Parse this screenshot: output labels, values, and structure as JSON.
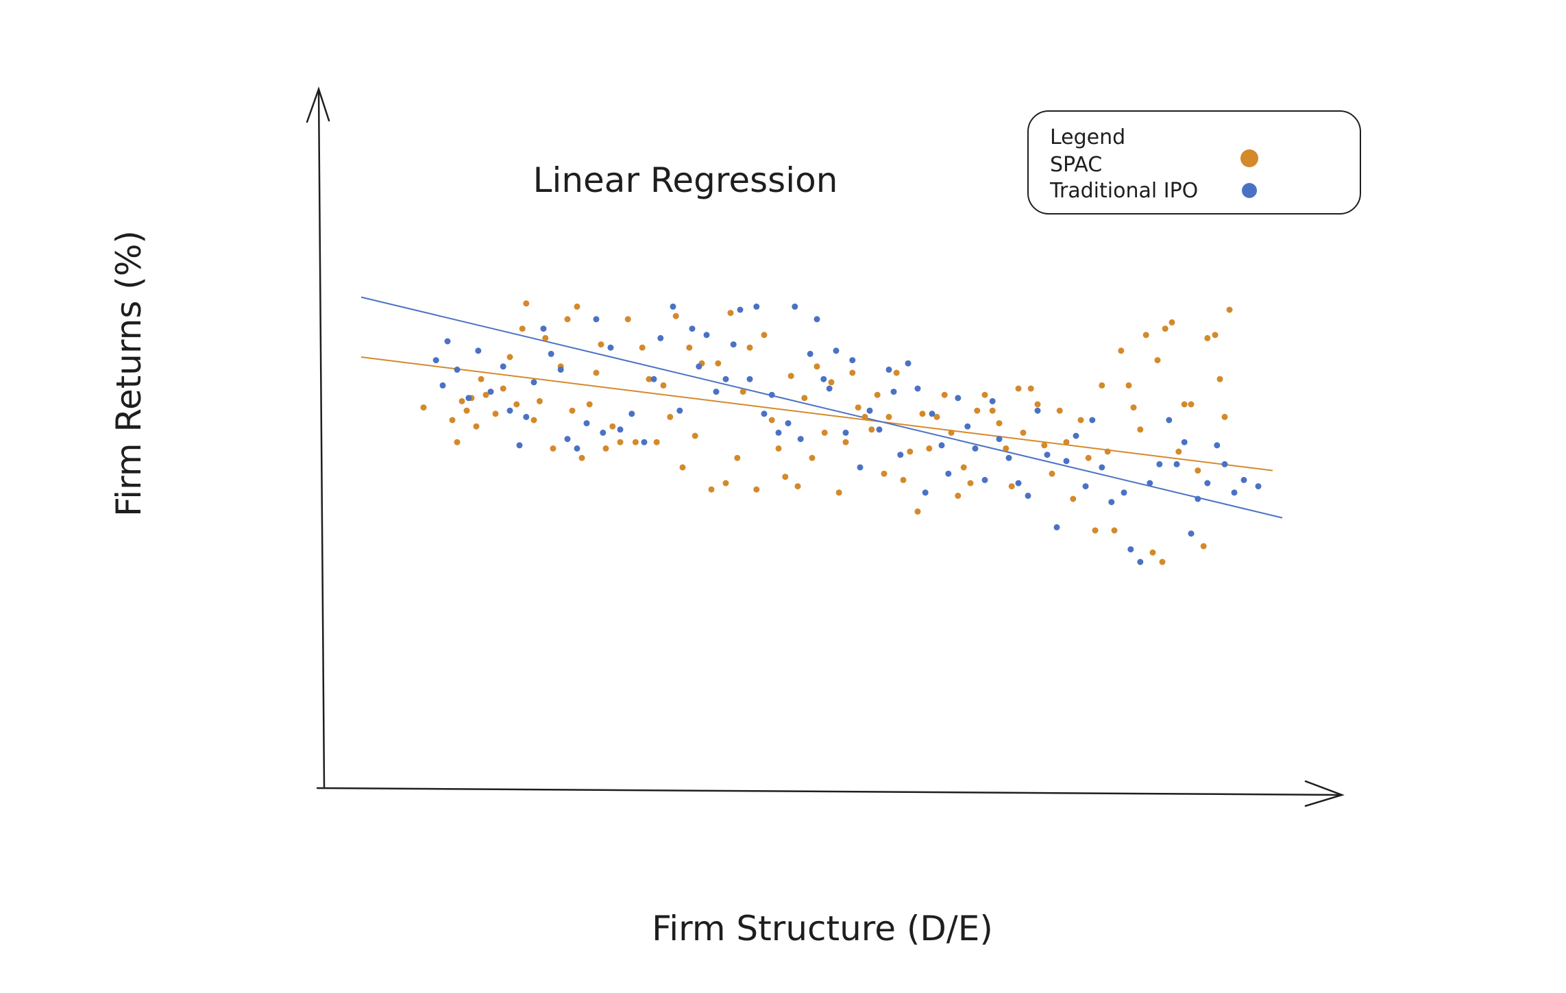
{
  "chart_data": {
    "type": "scatter",
    "title": "Linear Regression",
    "xlabel": "Firm Structure (D/E)",
    "ylabel": "Firm Returns (%)",
    "grid": false,
    "legend": {
      "title": "Legend",
      "placement": "top-right"
    },
    "series": [
      {
        "name": "SPAC",
        "color": "#D4892A",
        "points": [
          [
            0.65,
            0.49
          ],
          [
            0.95,
            0.45
          ],
          [
            1.0,
            0.38
          ],
          [
            1.05,
            0.51
          ],
          [
            1.1,
            0.48
          ],
          [
            1.15,
            0.52
          ],
          [
            1.2,
            0.43
          ],
          [
            1.25,
            0.58
          ],
          [
            1.3,
            0.53
          ],
          [
            1.4,
            0.47
          ],
          [
            1.48,
            0.55
          ],
          [
            1.55,
            0.65
          ],
          [
            1.62,
            0.5
          ],
          [
            1.68,
            0.74
          ],
          [
            1.72,
            0.82
          ],
          [
            1.8,
            0.45
          ],
          [
            1.86,
            0.51
          ],
          [
            1.92,
            0.71
          ],
          [
            2.0,
            0.36
          ],
          [
            2.08,
            0.62
          ],
          [
            2.15,
            0.77
          ],
          [
            2.2,
            0.48
          ],
          [
            2.25,
            0.81
          ],
          [
            2.3,
            0.33
          ],
          [
            2.38,
            0.5
          ],
          [
            2.45,
            0.6
          ],
          [
            2.5,
            0.69
          ],
          [
            2.55,
            0.36
          ],
          [
            2.62,
            0.43
          ],
          [
            2.7,
            0.38
          ],
          [
            2.78,
            0.77
          ],
          [
            2.86,
            0.38
          ],
          [
            2.93,
            0.68
          ],
          [
            3.0,
            0.58
          ],
          [
            3.08,
            0.38
          ],
          [
            3.15,
            0.56
          ],
          [
            3.22,
            0.46
          ],
          [
            3.28,
            0.78
          ],
          [
            3.35,
            0.3
          ],
          [
            3.42,
            0.68
          ],
          [
            3.48,
            0.4
          ],
          [
            3.55,
            0.63
          ],
          [
            3.65,
            0.23
          ],
          [
            3.72,
            0.63
          ],
          [
            3.8,
            0.25
          ],
          [
            3.85,
            0.79
          ],
          [
            3.92,
            0.33
          ],
          [
            3.98,
            0.54
          ],
          [
            4.05,
            0.68
          ],
          [
            4.12,
            0.23
          ],
          [
            4.2,
            0.72
          ],
          [
            4.28,
            0.45
          ],
          [
            4.35,
            0.36
          ],
          [
            4.42,
            0.27
          ],
          [
            4.48,
            0.59
          ],
          [
            4.55,
            0.24
          ],
          [
            4.62,
            0.52
          ],
          [
            4.7,
            0.33
          ],
          [
            4.75,
            0.62
          ],
          [
            4.83,
            0.41
          ],
          [
            4.9,
            0.57
          ],
          [
            4.98,
            0.22
          ],
          [
            5.05,
            0.38
          ],
          [
            5.12,
            0.6
          ],
          [
            5.18,
            0.49
          ],
          [
            5.25,
            0.46
          ],
          [
            5.32,
            0.42
          ],
          [
            5.38,
            0.53
          ],
          [
            5.45,
            0.28
          ],
          [
            5.5,
            0.46
          ],
          [
            5.58,
            0.6
          ],
          [
            5.65,
            0.26
          ],
          [
            5.72,
            0.35
          ],
          [
            5.8,
            0.16
          ],
          [
            5.85,
            0.47
          ],
          [
            5.92,
            0.36
          ],
          [
            6.0,
            0.46
          ],
          [
            6.08,
            0.53
          ],
          [
            6.15,
            0.41
          ],
          [
            6.22,
            0.21
          ],
          [
            6.28,
            0.3
          ],
          [
            6.35,
            0.25
          ],
          [
            6.42,
            0.48
          ],
          [
            6.5,
            0.53
          ],
          [
            6.58,
            0.48
          ],
          [
            6.65,
            0.44
          ],
          [
            6.72,
            0.36
          ],
          [
            6.78,
            0.24
          ],
          [
            6.85,
            0.55
          ],
          [
            6.9,
            0.41
          ],
          [
            6.98,
            0.55
          ],
          [
            7.05,
            0.5
          ],
          [
            7.12,
            0.37
          ],
          [
            7.2,
            0.28
          ],
          [
            7.28,
            0.48
          ],
          [
            7.35,
            0.38
          ],
          [
            7.42,
            0.2
          ],
          [
            7.5,
            0.45
          ],
          [
            7.58,
            0.33
          ],
          [
            7.65,
            0.1
          ],
          [
            7.72,
            0.56
          ],
          [
            7.78,
            0.35
          ],
          [
            7.85,
            0.1
          ],
          [
            7.92,
            0.67
          ],
          [
            8.0,
            0.56
          ],
          [
            8.05,
            0.49
          ],
          [
            8.12,
            0.42
          ],
          [
            8.18,
            0.72
          ],
          [
            8.25,
            0.03
          ],
          [
            8.3,
            0.64
          ],
          [
            8.35,
            0.0
          ],
          [
            8.38,
            0.74
          ],
          [
            8.45,
            0.76
          ],
          [
            8.52,
            0.35
          ],
          [
            8.58,
            0.5
          ],
          [
            8.65,
            0.5
          ],
          [
            8.72,
            0.29
          ],
          [
            8.78,
            0.05
          ],
          [
            8.82,
            0.71
          ],
          [
            8.9,
            0.72
          ],
          [
            8.95,
            0.58
          ],
          [
            9.0,
            0.46
          ],
          [
            9.05,
            0.8
          ]
        ],
        "fit": {
          "x": [
            0.0,
            9.5
          ],
          "y": [
            0.65,
            0.29
          ]
        }
      },
      {
        "name": "Traditional IPO",
        "color": "#4A72C4",
        "points": [
          [
            0.78,
            0.64
          ],
          [
            0.85,
            0.56
          ],
          [
            0.9,
            0.7
          ],
          [
            1.0,
            0.61
          ],
          [
            1.12,
            0.52
          ],
          [
            1.22,
            0.67
          ],
          [
            1.35,
            0.54
          ],
          [
            1.48,
            0.62
          ],
          [
            1.55,
            0.48
          ],
          [
            1.65,
            0.37
          ],
          [
            1.72,
            0.46
          ],
          [
            1.8,
            0.57
          ],
          [
            1.9,
            0.74
          ],
          [
            1.98,
            0.66
          ],
          [
            2.08,
            0.61
          ],
          [
            2.15,
            0.39
          ],
          [
            2.25,
            0.36
          ],
          [
            2.35,
            0.44
          ],
          [
            2.45,
            0.77
          ],
          [
            2.52,
            0.41
          ],
          [
            2.6,
            0.68
          ],
          [
            2.7,
            0.42
          ],
          [
            2.82,
            0.47
          ],
          [
            2.95,
            0.38
          ],
          [
            3.05,
            0.58
          ],
          [
            3.12,
            0.71
          ],
          [
            3.25,
            0.81
          ],
          [
            3.32,
            0.48
          ],
          [
            3.45,
            0.74
          ],
          [
            3.52,
            0.62
          ],
          [
            3.6,
            0.72
          ],
          [
            3.7,
            0.54
          ],
          [
            3.8,
            0.58
          ],
          [
            3.88,
            0.69
          ],
          [
            3.95,
            0.8
          ],
          [
            4.05,
            0.58
          ],
          [
            4.12,
            0.81
          ],
          [
            4.2,
            0.47
          ],
          [
            4.28,
            0.53
          ],
          [
            4.35,
            0.41
          ],
          [
            4.45,
            0.44
          ],
          [
            4.52,
            0.81
          ],
          [
            4.58,
            0.39
          ],
          [
            4.68,
            0.66
          ],
          [
            4.75,
            0.77
          ],
          [
            4.82,
            0.58
          ],
          [
            4.88,
            0.55
          ],
          [
            4.95,
            0.67
          ],
          [
            5.05,
            0.41
          ],
          [
            5.12,
            0.64
          ],
          [
            5.2,
            0.3
          ],
          [
            5.3,
            0.48
          ],
          [
            5.4,
            0.42
          ],
          [
            5.5,
            0.61
          ],
          [
            5.55,
            0.54
          ],
          [
            5.62,
            0.34
          ],
          [
            5.7,
            0.63
          ],
          [
            5.8,
            0.55
          ],
          [
            5.88,
            0.22
          ],
          [
            5.95,
            0.47
          ],
          [
            6.05,
            0.37
          ],
          [
            6.12,
            0.28
          ],
          [
            6.22,
            0.52
          ],
          [
            6.32,
            0.43
          ],
          [
            6.4,
            0.36
          ],
          [
            6.5,
            0.26
          ],
          [
            6.58,
            0.51
          ],
          [
            6.65,
            0.39
          ],
          [
            6.75,
            0.33
          ],
          [
            6.85,
            0.25
          ],
          [
            6.95,
            0.21
          ],
          [
            7.05,
            0.48
          ],
          [
            7.15,
            0.34
          ],
          [
            7.25,
            0.11
          ],
          [
            7.35,
            0.32
          ],
          [
            7.45,
            0.4
          ],
          [
            7.55,
            0.24
          ],
          [
            7.62,
            0.45
          ],
          [
            7.72,
            0.3
          ],
          [
            7.82,
            0.19
          ],
          [
            7.95,
            0.22
          ],
          [
            8.02,
            0.04
          ],
          [
            8.12,
            0.0
          ],
          [
            8.22,
            0.25
          ],
          [
            8.32,
            0.31
          ],
          [
            8.42,
            0.45
          ],
          [
            8.5,
            0.31
          ],
          [
            8.58,
            0.38
          ],
          [
            8.65,
            0.09
          ],
          [
            8.72,
            0.2
          ],
          [
            8.82,
            0.25
          ],
          [
            8.92,
            0.37
          ],
          [
            9.0,
            0.31
          ],
          [
            9.1,
            0.22
          ],
          [
            9.2,
            0.26
          ],
          [
            9.35,
            0.24
          ]
        ],
        "fit": {
          "x": [
            0.0,
            9.6
          ],
          "y": [
            0.84,
            0.14
          ]
        }
      }
    ]
  }
}
